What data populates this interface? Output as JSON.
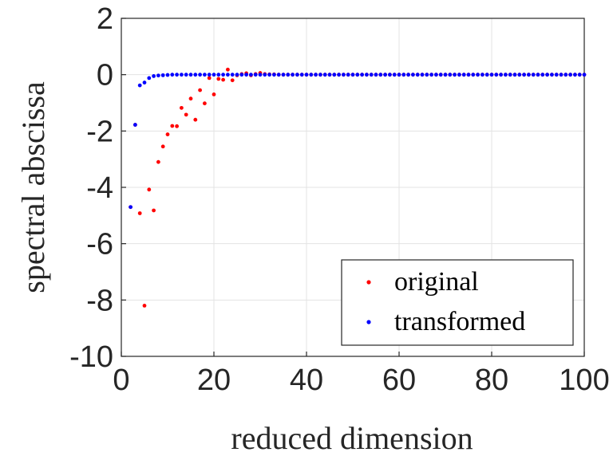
{
  "chart_data": {
    "type": "scatter",
    "title": "",
    "xlabel": "reduced dimension",
    "ylabel": "spectral abscissa",
    "xlim": [
      0,
      100
    ],
    "ylim": [
      -10,
      2
    ],
    "xticks": [
      "0",
      "20",
      "40",
      "60",
      "80",
      "100"
    ],
    "yticks": [
      "2",
      "0",
      "-2",
      "-4",
      "-6",
      "-8",
      "-10"
    ],
    "grid": true,
    "legend_position": "bottom-right",
    "series": [
      {
        "name": "original",
        "color": "#ff0000",
        "x": [
          2,
          3,
          4,
          5,
          6,
          7,
          8,
          9,
          10,
          11,
          12,
          13,
          14,
          15,
          16,
          17,
          18,
          19,
          20,
          21,
          22,
          23,
          24,
          25,
          26,
          27,
          28,
          29,
          30,
          31,
          32,
          33,
          34,
          35,
          36,
          37,
          38,
          39,
          40,
          41,
          42,
          43,
          44,
          45,
          46,
          47,
          48,
          49,
          50,
          51,
          52,
          53,
          54,
          55,
          56,
          57,
          58,
          59,
          60,
          61,
          62,
          63,
          64,
          65,
          66,
          67,
          68,
          69,
          70,
          71,
          72,
          73,
          74,
          75,
          76,
          77,
          78,
          79,
          80,
          81,
          82,
          83,
          84,
          85,
          86,
          87,
          88,
          89,
          90,
          91,
          92,
          93,
          94,
          95,
          96,
          97,
          98,
          99,
          100
        ],
        "y": [
          -4.7,
          -1.78,
          -4.92,
          -8.2,
          -4.08,
          -4.82,
          -3.1,
          -2.55,
          -2.12,
          -1.82,
          -1.83,
          -1.18,
          -1.42,
          -0.85,
          -1.6,
          -0.55,
          -1.02,
          -0.12,
          -0.7,
          -0.15,
          -0.18,
          0.18,
          -0.2,
          -0.02,
          0.02,
          0.05,
          -0.02,
          0.02,
          0.06,
          0.02,
          0.01,
          0.01,
          0,
          0,
          0,
          0,
          0,
          0,
          0,
          0,
          0,
          0,
          0,
          0,
          0,
          0,
          0,
          0,
          0,
          0,
          0,
          0,
          0,
          0,
          0,
          0,
          0,
          0,
          0,
          0,
          0,
          0,
          0,
          0,
          0,
          0,
          0,
          0,
          0,
          0,
          0,
          0,
          0,
          0,
          0,
          0,
          0,
          0,
          0,
          0,
          0,
          0,
          0,
          0,
          0,
          0,
          0,
          0,
          0,
          0,
          0,
          0,
          0,
          0,
          0,
          0,
          0,
          0,
          0
        ]
      },
      {
        "name": "transformed",
        "color": "#0000ff",
        "x": [
          2,
          3,
          4,
          5,
          6,
          7,
          8,
          9,
          10,
          11,
          12,
          13,
          14,
          15,
          16,
          17,
          18,
          19,
          20,
          21,
          22,
          23,
          24,
          25,
          26,
          27,
          28,
          29,
          30,
          31,
          32,
          33,
          34,
          35,
          36,
          37,
          38,
          39,
          40,
          41,
          42,
          43,
          44,
          45,
          46,
          47,
          48,
          49,
          50,
          51,
          52,
          53,
          54,
          55,
          56,
          57,
          58,
          59,
          60,
          61,
          62,
          63,
          64,
          65,
          66,
          67,
          68,
          69,
          70,
          71,
          72,
          73,
          74,
          75,
          76,
          77,
          78,
          79,
          80,
          81,
          82,
          83,
          84,
          85,
          86,
          87,
          88,
          89,
          90,
          91,
          92,
          93,
          94,
          95,
          96,
          97,
          98,
          99,
          100
        ],
        "y": [
          -4.7,
          -1.78,
          -0.38,
          -0.28,
          -0.12,
          -0.05,
          -0.03,
          -0.02,
          -0.01,
          0,
          0,
          0,
          0,
          0,
          0,
          0,
          0,
          0,
          0,
          0,
          0,
          0,
          0,
          0,
          0,
          0,
          0,
          0,
          0,
          0,
          0,
          0,
          0,
          0,
          0,
          0,
          0,
          0,
          0,
          0,
          0,
          0,
          0,
          0,
          0,
          0,
          0,
          0,
          0,
          0,
          0,
          0,
          0,
          0,
          0,
          0,
          0,
          0,
          0,
          0,
          0,
          0,
          0,
          0,
          0,
          0,
          0,
          0,
          0,
          0,
          0,
          0,
          0,
          0,
          0,
          0,
          0,
          0,
          0,
          0,
          0,
          0,
          0,
          0,
          0,
          0,
          0,
          0,
          0,
          0,
          0,
          0,
          0,
          0,
          0,
          0,
          0,
          0,
          0
        ]
      }
    ]
  }
}
